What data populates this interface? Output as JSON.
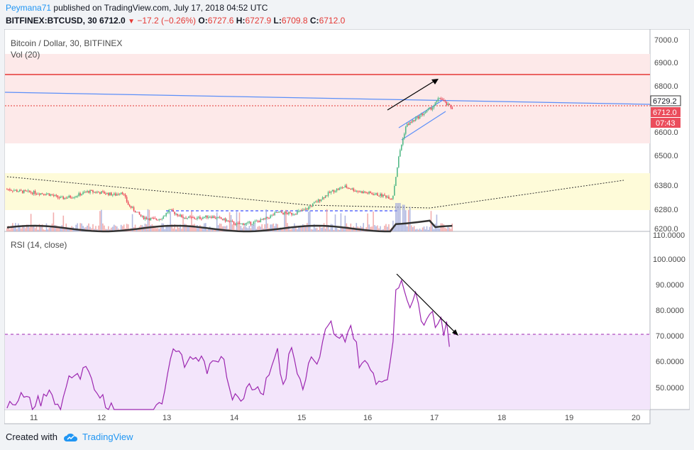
{
  "header": {
    "author": "Peymana71",
    "published_text": "published on TradingView.com, July 17, 2018 04:52 UTC",
    "symbol": "BITFINEX:BTCUSD, 30",
    "last": "6712.0",
    "change": "−17.2 (−0.26%)",
    "o_label": "O:",
    "o_value": "6727.6",
    "h_label": "H:",
    "h_value": "6727.9",
    "l_label": "L:",
    "l_value": "6709.8",
    "c_label": "C:",
    "c_value": "6712.0"
  },
  "price_pane": {
    "title": "Bitcoin / Dollar, 30, BITFINEX",
    "volume_label": "Vol (20)",
    "axis_ticks": [
      "7000.0",
      "6900.0",
      "6800.0",
      "6729.2",
      "6712.0",
      "07:43",
      "6600.0",
      "6500.0",
      "6380.0",
      "6280.0",
      "6200.0"
    ]
  },
  "rsi_pane": {
    "title": "RSI (14, close)",
    "axis_ticks": [
      "110.0000",
      "100.0000",
      "90.0000",
      "80.0000",
      "70.0000",
      "60.0000",
      "50.0000"
    ]
  },
  "time_axis": [
    "11",
    "12",
    "13",
    "14",
    "15",
    "16",
    "17",
    "18",
    "19",
    "20"
  ],
  "footer": {
    "created_with": "Created with",
    "brand": "TradingView"
  },
  "colors": {
    "up": "#53b987",
    "down": "#eb4d5c",
    "rsi_line": "#9c27b0",
    "trend_blue": "#2962ff",
    "accent": "#2196f3"
  },
  "chart_data": [
    {
      "type": "candlestick",
      "symbol": "BITFINEX:BTCUSD",
      "interval": "30",
      "x_ticks": [
        "11",
        "12",
        "13",
        "14",
        "15",
        "16",
        "17",
        "18",
        "19",
        "20"
      ],
      "y_ticks": [
        6200,
        6280,
        6380,
        6500,
        6600,
        6800,
        6900,
        7000
      ],
      "ylim": [
        6190,
        7050
      ],
      "last_price": 6712.0,
      "trendline_price": 6729.2,
      "countdown": "07:43",
      "price_path": [
        [
          10.6,
          6370
        ],
        [
          10.8,
          6360
        ],
        [
          11.0,
          6355
        ],
        [
          11.2,
          6350
        ],
        [
          11.4,
          6330
        ],
        [
          11.6,
          6340
        ],
        [
          11.8,
          6360
        ],
        [
          12.0,
          6355
        ],
        [
          12.2,
          6345
        ],
        [
          12.3,
          6360
        ],
        [
          12.4,
          6300
        ],
        [
          12.6,
          6250
        ],
        [
          12.8,
          6240
        ],
        [
          12.9,
          6250
        ],
        [
          13.0,
          6280
        ],
        [
          13.2,
          6250
        ],
        [
          13.4,
          6245
        ],
        [
          13.6,
          6255
        ],
        [
          13.8,
          6240
        ],
        [
          14.0,
          6220
        ],
        [
          14.2,
          6225
        ],
        [
          14.4,
          6240
        ],
        [
          14.6,
          6270
        ],
        [
          14.8,
          6265
        ],
        [
          15.0,
          6280
        ],
        [
          15.2,
          6320
        ],
        [
          15.4,
          6360
        ],
        [
          15.6,
          6380
        ],
        [
          15.8,
          6360
        ],
        [
          16.0,
          6350
        ],
        [
          16.2,
          6340
        ],
        [
          16.3,
          6330
        ],
        [
          16.4,
          6520
        ],
        [
          16.5,
          6640
        ],
        [
          16.6,
          6660
        ],
        [
          16.7,
          6680
        ],
        [
          16.8,
          6700
        ],
        [
          16.9,
          6720
        ],
        [
          17.0,
          6760
        ],
        [
          17.1,
          6730
        ],
        [
          17.2,
          6712
        ]
      ],
      "rsi_values": [
        [
          10.6,
          44
        ],
        [
          10.8,
          46
        ],
        [
          11.0,
          42
        ],
        [
          11.2,
          48
        ],
        [
          11.4,
          40
        ],
        [
          11.5,
          55
        ],
        [
          11.6,
          52
        ],
        [
          11.8,
          56
        ],
        [
          11.9,
          45
        ],
        [
          12.0,
          48
        ],
        [
          12.1,
          42
        ],
        [
          12.3,
          40
        ],
        [
          12.5,
          38
        ],
        [
          12.7,
          40
        ],
        [
          12.9,
          44
        ],
        [
          13.0,
          60
        ],
        [
          13.1,
          66
        ],
        [
          13.2,
          58
        ],
        [
          13.4,
          62
        ],
        [
          13.6,
          56
        ],
        [
          13.8,
          64
        ],
        [
          13.9,
          48
        ],
        [
          14.0,
          44
        ],
        [
          14.2,
          52
        ],
        [
          14.4,
          48
        ],
        [
          14.5,
          60
        ],
        [
          14.6,
          62
        ],
        [
          14.7,
          50
        ],
        [
          14.8,
          66
        ],
        [
          14.9,
          54
        ],
        [
          15.0,
          50
        ],
        [
          15.1,
          62
        ],
        [
          15.2,
          56
        ],
        [
          15.3,
          70
        ],
        [
          15.4,
          74
        ],
        [
          15.5,
          66
        ],
        [
          15.6,
          70
        ],
        [
          15.7,
          74
        ],
        [
          15.8,
          60
        ],
        [
          15.9,
          58
        ],
        [
          16.0,
          56
        ],
        [
          16.1,
          52
        ],
        [
          16.2,
          54
        ],
        [
          16.3,
          60
        ],
        [
          16.35,
          88
        ],
        [
          16.45,
          92
        ],
        [
          16.55,
          82
        ],
        [
          16.65,
          84
        ],
        [
          16.75,
          76
        ],
        [
          16.85,
          80
        ],
        [
          16.95,
          74
        ],
        [
          17.0,
          78
        ],
        [
          17.05,
          72
        ],
        [
          17.1,
          74
        ],
        [
          17.15,
          60
        ]
      ],
      "rsi_ylim": [
        41,
        110
      ],
      "rsi_overbought": 70
    }
  ]
}
